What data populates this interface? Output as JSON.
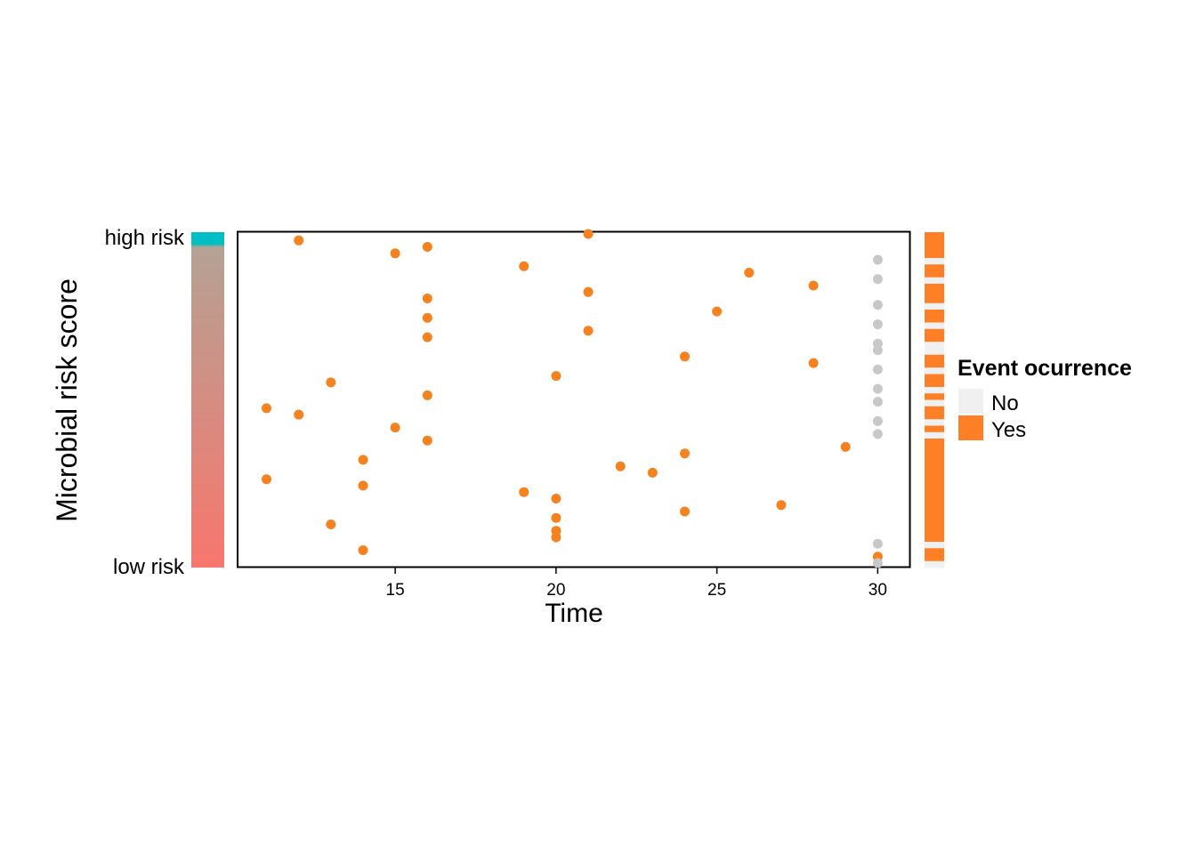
{
  "chart_data": {
    "type": "scatter",
    "xlabel": "Time",
    "ylabel": "Microbial risk score",
    "y_end_labels": {
      "top": "high risk",
      "bottom": "low risk"
    },
    "xlim": [
      10.1,
      31
    ],
    "xticks": [
      15,
      20,
      25,
      30
    ],
    "n_rows": 52,
    "grid": false,
    "legend": {
      "title": "Event ocurrence",
      "position": "right",
      "entries": [
        {
          "key": "no",
          "label": "No",
          "color": "#f0f0f0"
        },
        {
          "key": "yes",
          "label": "Yes",
          "color": "#ff7f27"
        }
      ]
    },
    "colors": {
      "event": "#f5821f",
      "censored": "#c8c8c8",
      "gradient_top": "#00bfc4",
      "gradient_mid": "#b4a294",
      "gradient_bottom": "#f8766d"
    },
    "points": [
      {
        "time": 21,
        "event": true
      },
      {
        "time": 12,
        "event": true
      },
      {
        "time": 16,
        "event": true
      },
      {
        "time": 15,
        "event": true
      },
      {
        "time": 30,
        "event": false
      },
      {
        "time": 19,
        "event": true
      },
      {
        "time": 26,
        "event": true
      },
      {
        "time": 30,
        "event": false
      },
      {
        "time": 28,
        "event": true
      },
      {
        "time": 21,
        "event": true
      },
      {
        "time": 16,
        "event": true
      },
      {
        "time": 30,
        "event": false
      },
      {
        "time": 25,
        "event": true
      },
      {
        "time": 16,
        "event": true
      },
      {
        "time": 30,
        "event": false
      },
      {
        "time": 21,
        "event": true
      },
      {
        "time": 16,
        "event": true
      },
      {
        "time": 30,
        "event": false
      },
      {
        "time": 30,
        "event": false
      },
      {
        "time": 24,
        "event": true
      },
      {
        "time": 28,
        "event": true
      },
      {
        "time": 30,
        "event": false
      },
      {
        "time": 20,
        "event": true
      },
      {
        "time": 13,
        "event": true
      },
      {
        "time": 30,
        "event": false
      },
      {
        "time": 16,
        "event": true
      },
      {
        "time": 30,
        "event": false
      },
      {
        "time": 11,
        "event": true
      },
      {
        "time": 12,
        "event": true
      },
      {
        "time": 30,
        "event": false
      },
      {
        "time": 15,
        "event": true
      },
      {
        "time": 30,
        "event": false
      },
      {
        "time": 16,
        "event": true
      },
      {
        "time": 29,
        "event": true
      },
      {
        "time": 24,
        "event": true
      },
      {
        "time": 14,
        "event": true
      },
      {
        "time": 22,
        "event": true
      },
      {
        "time": 23,
        "event": true
      },
      {
        "time": 11,
        "event": true
      },
      {
        "time": 14,
        "event": true
      },
      {
        "time": 19,
        "event": true
      },
      {
        "time": 20,
        "event": true
      },
      {
        "time": 27,
        "event": true
      },
      {
        "time": 24,
        "event": true
      },
      {
        "time": 20,
        "event": true
      },
      {
        "time": 13,
        "event": true
      },
      {
        "time": 20,
        "event": true
      },
      {
        "time": 20,
        "event": true
      },
      {
        "time": 30,
        "event": false
      },
      {
        "time": 14,
        "event": true
      },
      {
        "time": 30,
        "event": true
      },
      {
        "time": 30,
        "event": false
      }
    ]
  }
}
